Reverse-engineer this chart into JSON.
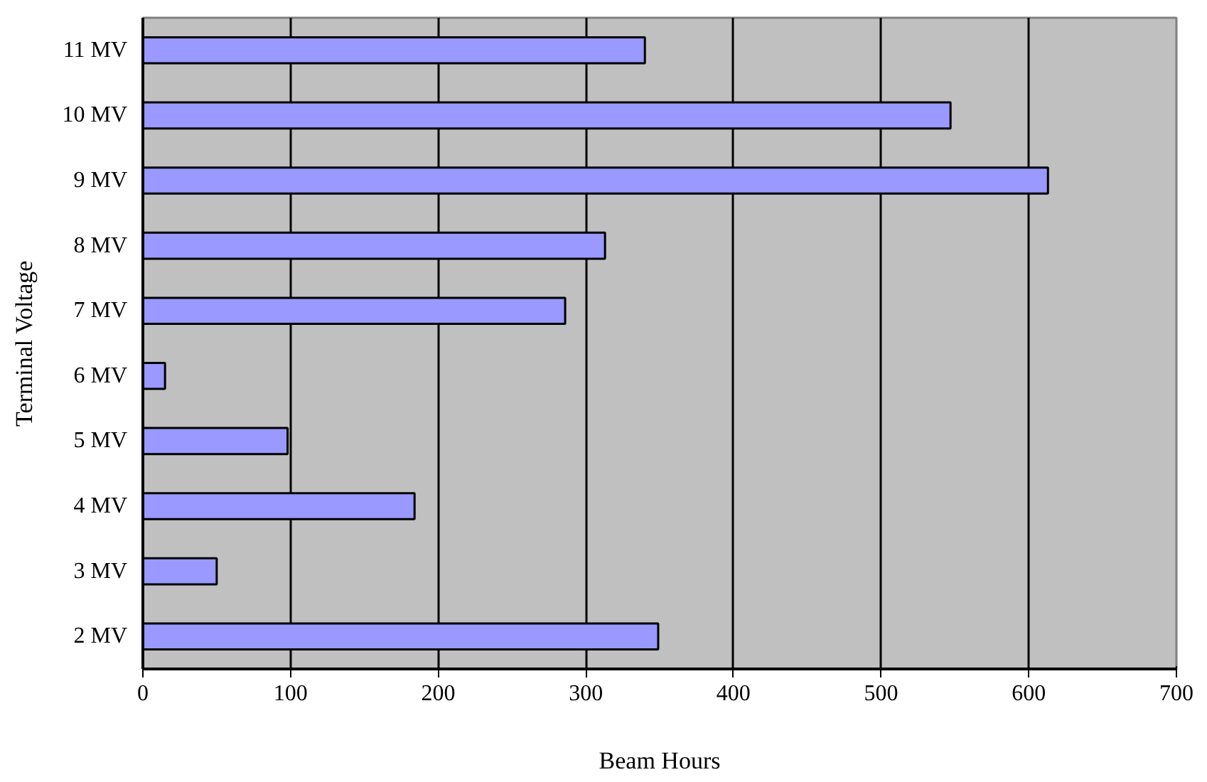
{
  "chart_data": {
    "type": "bar",
    "orientation": "horizontal",
    "categories": [
      "11 MV",
      "10 MV",
      "9 MV",
      "8 MV",
      "7 MV",
      "6 MV",
      "5 MV",
      "4 MV",
      "3 MV",
      "2 MV"
    ],
    "values": [
      340,
      547,
      613,
      313,
      286,
      15,
      98,
      184,
      50,
      349
    ],
    "color": "#9999ff",
    "xlabel": "Beam Hours",
    "ylabel": "Terminal Voltage",
    "xlim": [
      0,
      700
    ],
    "xticks": [
      0,
      100,
      200,
      300,
      400,
      500,
      600,
      700
    ],
    "grid": "x"
  }
}
